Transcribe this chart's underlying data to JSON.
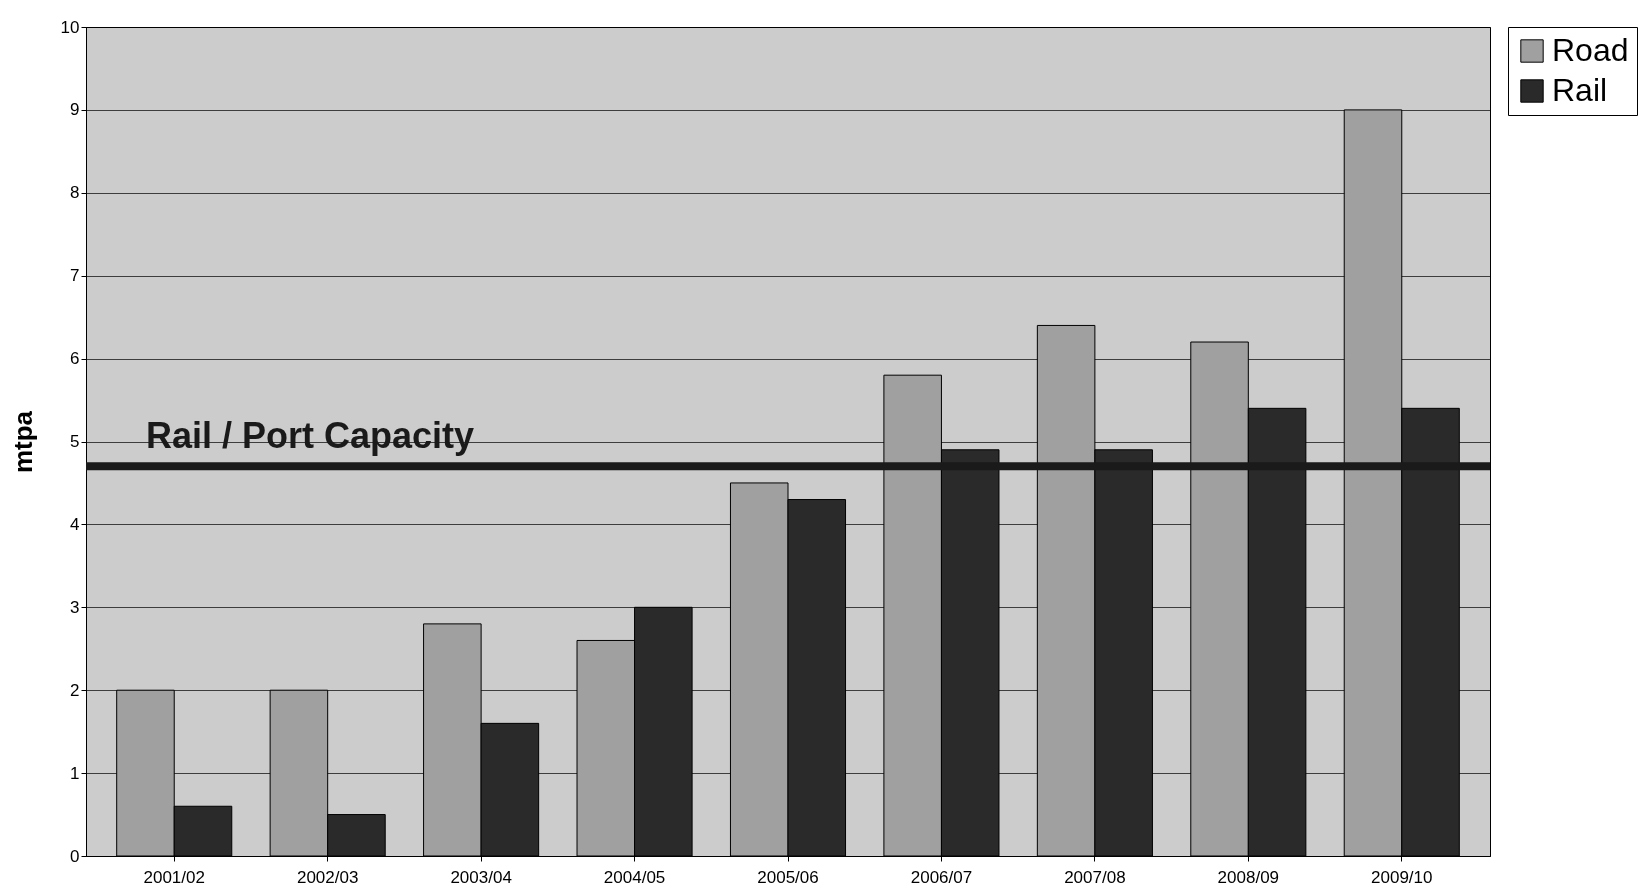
{
  "chart_data": {
    "type": "bar",
    "ylabel": "mtpa",
    "categories": [
      "2001/02",
      "2002/03",
      "2003/04",
      "2004/05",
      "2005/06",
      "2006/07",
      "2007/08",
      "2008/09",
      "2009/10"
    ],
    "series": [
      {
        "name": "Road",
        "color": "#a0a0a0",
        "values": [
          2.0,
          2.0,
          2.8,
          2.6,
          4.5,
          5.8,
          6.4,
          6.2,
          9.0
        ]
      },
      {
        "name": "Rail",
        "color": "#2a2a2a",
        "values": [
          0.6,
          0.5,
          1.6,
          3.0,
          4.3,
          4.9,
          4.9,
          5.4,
          5.4
        ]
      }
    ],
    "ylim": [
      0,
      10
    ],
    "yticks": [
      0,
      1,
      2,
      3,
      4,
      5,
      6,
      7,
      8,
      9,
      10
    ],
    "grid": "y",
    "legend": "right",
    "ref_lines": [
      {
        "axis": "y",
        "value": 4.7,
        "label": "Rail / Port Capacity",
        "color": "#1a1a1a"
      }
    ]
  }
}
